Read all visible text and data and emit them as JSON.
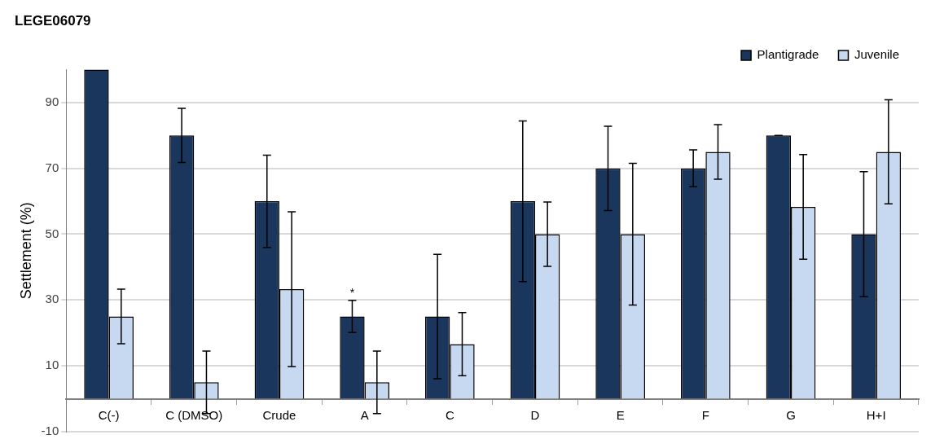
{
  "chart_data": {
    "type": "bar",
    "title": "LEGE06079",
    "ylabel": "Settlement (%)",
    "categories": [
      "C(-)",
      "C (DMSO)",
      "Crude",
      "A",
      "C",
      "D",
      "E",
      "F",
      "G",
      "H+I"
    ],
    "series": [
      {
        "name": "Plantigrade",
        "color": "#1a365d",
        "values": [
          100,
          80,
          60,
          25,
          25,
          60,
          70,
          70,
          80,
          50
        ],
        "errors": [
          null,
          8.2,
          14,
          4.9,
          18.9,
          24.4,
          12.8,
          5.6,
          0,
          19
        ],
        "value_labels": [
          null,
          null,
          null,
          "*",
          null,
          null,
          null,
          null,
          null,
          null
        ]
      },
      {
        "name": "Juvenile",
        "color": "#c6d9f0",
        "values": [
          25,
          5,
          33.3,
          5,
          16.6,
          50,
          50,
          75,
          58.3,
          75
        ],
        "errors": [
          8.3,
          9.5,
          23.5,
          9.5,
          9.6,
          9.8,
          21.5,
          8.3,
          15.9,
          15.8
        ]
      }
    ],
    "ylim": [
      -10,
      100
    ],
    "yticks": [
      -10,
      10,
      30,
      50,
      70,
      90
    ],
    "grid": "y",
    "legend": "top right"
  }
}
